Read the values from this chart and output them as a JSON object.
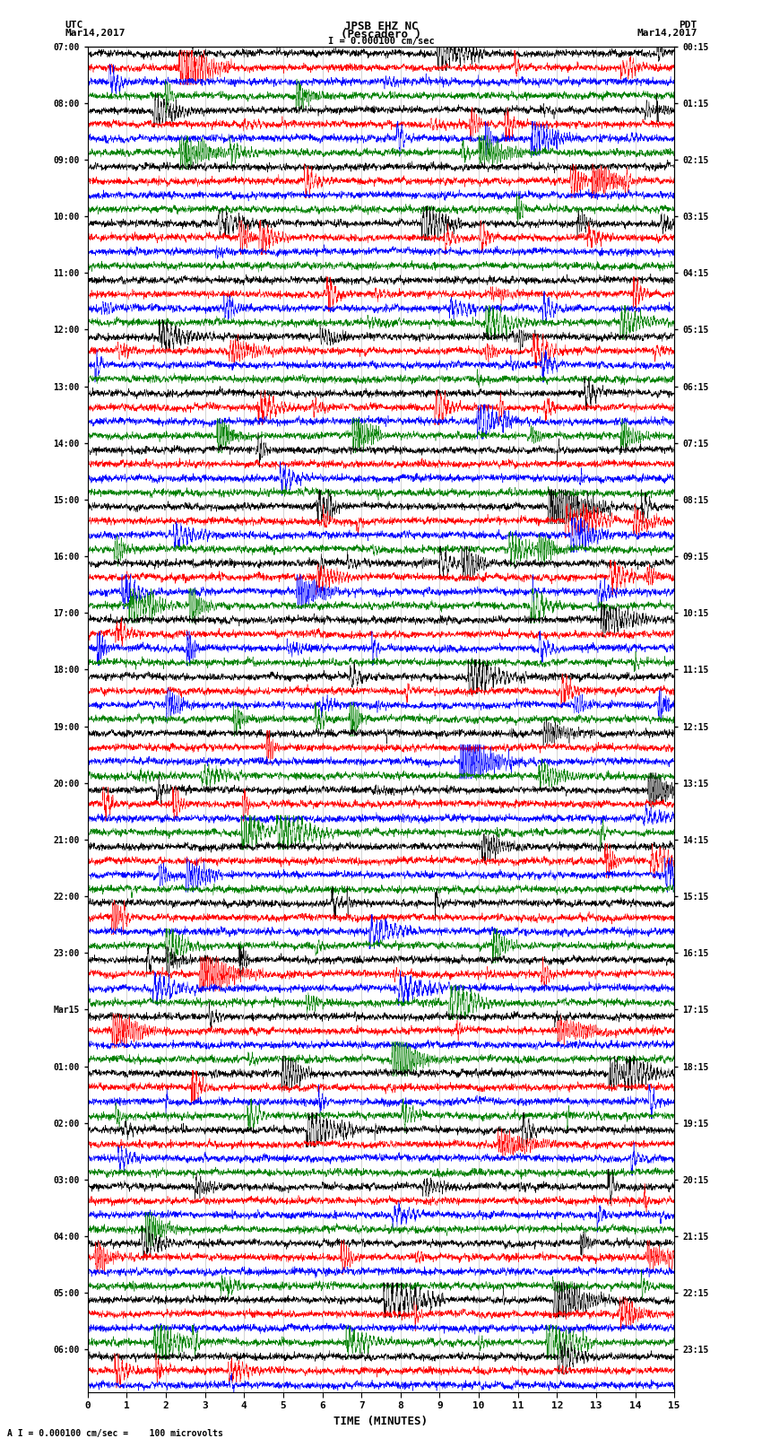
{
  "title_line1": "JPSB EHZ NC",
  "title_line2": "(Pescadero )",
  "scale_label": "I = 0.000100 cm/sec",
  "utc_label": "UTC",
  "utc_date": "Mar14,2017",
  "pdt_label": "PDT",
  "pdt_date": "Mar14,2017",
  "bottom_label": "A I = 0.000100 cm/sec =    100 microvolts",
  "xlabel": "TIME (MINUTES)",
  "xlim": [
    0,
    15
  ],
  "xticks": [
    0,
    1,
    2,
    3,
    4,
    5,
    6,
    7,
    8,
    9,
    10,
    11,
    12,
    13,
    14,
    15
  ],
  "left_times": [
    "07:00",
    "",
    "",
    "",
    "08:00",
    "",
    "",
    "",
    "09:00",
    "",
    "",
    "",
    "10:00",
    "",
    "",
    "",
    "11:00",
    "",
    "",
    "",
    "12:00",
    "",
    "",
    "",
    "13:00",
    "",
    "",
    "",
    "14:00",
    "",
    "",
    "",
    "15:00",
    "",
    "",
    "",
    "16:00",
    "",
    "",
    "",
    "17:00",
    "",
    "",
    "",
    "18:00",
    "",
    "",
    "",
    "19:00",
    "",
    "",
    "",
    "20:00",
    "",
    "",
    "",
    "21:00",
    "",
    "",
    "",
    "22:00",
    "",
    "",
    "",
    "23:00",
    "",
    "",
    "",
    "Mar15",
    "",
    "",
    "",
    "01:00",
    "",
    "",
    "",
    "02:00",
    "",
    "",
    "",
    "03:00",
    "",
    "",
    "",
    "04:00",
    "",
    "",
    "",
    "05:00",
    "",
    "",
    "",
    "06:00",
    "",
    ""
  ],
  "right_times": [
    "00:15",
    "",
    "",
    "",
    "01:15",
    "",
    "",
    "",
    "02:15",
    "",
    "",
    "",
    "03:15",
    "",
    "",
    "",
    "04:15",
    "",
    "",
    "",
    "05:15",
    "",
    "",
    "",
    "06:15",
    "",
    "",
    "",
    "07:15",
    "",
    "",
    "",
    "08:15",
    "",
    "",
    "",
    "09:15",
    "",
    "",
    "",
    "10:15",
    "",
    "",
    "",
    "11:15",
    "",
    "",
    "",
    "12:15",
    "",
    "",
    "",
    "13:15",
    "",
    "",
    "",
    "14:15",
    "",
    "",
    "",
    "15:15",
    "",
    "",
    "",
    "16:15",
    "",
    "",
    "",
    "17:15",
    "",
    "",
    "",
    "18:15",
    "",
    "",
    "",
    "19:15",
    "",
    "",
    "",
    "20:15",
    "",
    "",
    "",
    "21:15",
    "",
    "",
    "",
    "22:15",
    "",
    "",
    "",
    "23:15",
    "",
    ""
  ],
  "colors": [
    "black",
    "red",
    "blue",
    "green"
  ],
  "num_rows": 95,
  "bg_color": "white",
  "seed": 42
}
